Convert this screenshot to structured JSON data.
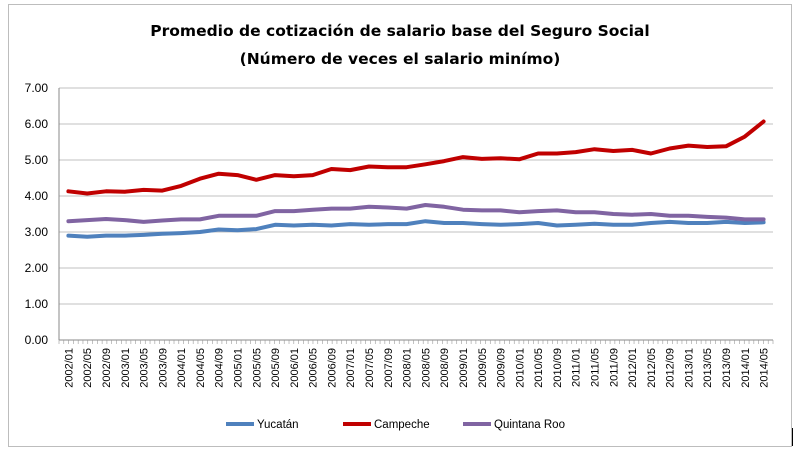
{
  "chart_data": {
    "type": "line",
    "title": "Promedio de cotización de salario base del Seguro Social",
    "subtitle": "(Número de veces el salario minímo)",
    "xlabel": "",
    "ylabel": "",
    "ylim": [
      0,
      7
    ],
    "yticks": [
      "0.00",
      "1.00",
      "2.00",
      "3.00",
      "4.00",
      "5.00",
      "6.00",
      "7.00"
    ],
    "grid": true,
    "legend": "bottom",
    "categories": [
      "2002/01",
      "2002/05",
      "2002/09",
      "2003/01",
      "2003/05",
      "2003/09",
      "2004/01",
      "2004/05",
      "2004/09",
      "2005/01",
      "2005/05",
      "2005/09",
      "2006/01",
      "2006/05",
      "2006/09",
      "2007/01",
      "2007/05",
      "2007/09",
      "2008/01",
      "2008/05",
      "2008/09",
      "2009/01",
      "2009/05",
      "2009/09",
      "2010/01",
      "2010/05",
      "2010/09",
      "2011/01",
      "2011/05",
      "2011/09",
      "2012/01",
      "2012/05",
      "2012/09",
      "2013/01",
      "2013/05",
      "2013/09",
      "2014/01",
      "2014/05"
    ],
    "series": [
      {
        "name": "Yucatán",
        "color": "#4f81bd",
        "values": [
          2.9,
          2.87,
          2.9,
          2.9,
          2.92,
          2.95,
          2.97,
          3.0,
          3.07,
          3.05,
          3.08,
          3.2,
          3.18,
          3.2,
          3.18,
          3.22,
          3.2,
          3.22,
          3.22,
          3.3,
          3.25,
          3.25,
          3.22,
          3.2,
          3.22,
          3.25,
          3.18,
          3.2,
          3.23,
          3.2,
          3.2,
          3.25,
          3.28,
          3.25,
          3.25,
          3.28,
          3.25,
          3.27
        ]
      },
      {
        "name": "Campeche",
        "color": "#c00000",
        "values": [
          4.13,
          4.07,
          4.13,
          4.12,
          4.17,
          4.15,
          4.28,
          4.48,
          4.62,
          4.58,
          4.45,
          4.58,
          4.55,
          4.58,
          4.75,
          4.72,
          4.82,
          4.8,
          4.8,
          4.88,
          4.97,
          5.08,
          5.03,
          5.05,
          5.02,
          5.18,
          5.18,
          5.22,
          5.3,
          5.25,
          5.28,
          5.18,
          5.32,
          5.4,
          5.36,
          5.38,
          5.65,
          6.07
        ]
      },
      {
        "name": "Quintana Roo",
        "color": "#8064a2",
        "values": [
          3.3,
          3.33,
          3.36,
          3.33,
          3.28,
          3.32,
          3.35,
          3.35,
          3.45,
          3.45,
          3.45,
          3.58,
          3.58,
          3.62,
          3.65,
          3.65,
          3.7,
          3.68,
          3.65,
          3.75,
          3.7,
          3.62,
          3.6,
          3.6,
          3.55,
          3.58,
          3.6,
          3.55,
          3.55,
          3.5,
          3.48,
          3.5,
          3.45,
          3.45,
          3.42,
          3.4,
          3.35,
          3.35
        ]
      }
    ]
  }
}
